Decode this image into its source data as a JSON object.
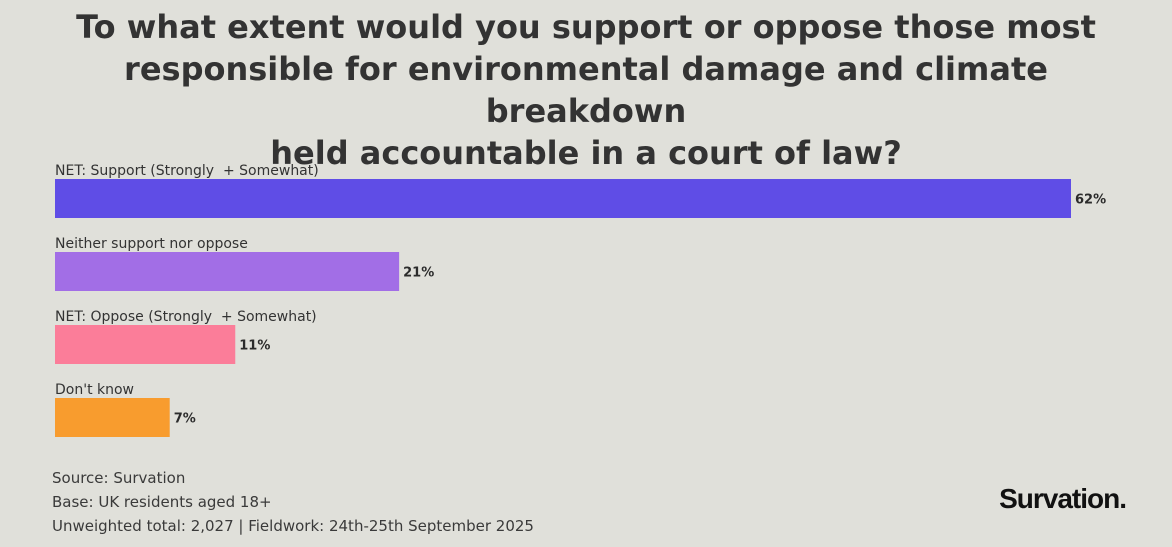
{
  "title_lines": [
    "To what extent would you support or oppose those most",
    "responsible for environmental damage and climate breakdown",
    "held accountable in a court of law?"
  ],
  "chart_data": {
    "type": "bar",
    "orientation": "horizontal",
    "title": "To what extent would you support or oppose those most responsible for environmental damage and climate breakdown held accountable in a court of law?",
    "categories": [
      "NET: Support (Strongly  + Somewhat)",
      "Neither support nor oppose",
      "NET: Oppose (Strongly  + Somewhat)",
      "Don't know"
    ],
    "values": [
      62,
      21,
      11,
      7
    ],
    "value_labels": [
      "62%",
      "21%",
      "11%",
      "7%"
    ],
    "colors": [
      "#5f4de6",
      "#a26ee6",
      "#fb7d99",
      "#f89c2e"
    ],
    "unit": "%",
    "xlim": [
      0,
      62
    ],
    "grid": false,
    "legend": "none"
  },
  "footer": {
    "source": "Source: Survation",
    "base": "Base: UK residents aged 18+",
    "fieldwork": "Unweighted total: 2,027 | Fieldwork: 24th-25th September 2025"
  },
  "logo_text": "Survation."
}
